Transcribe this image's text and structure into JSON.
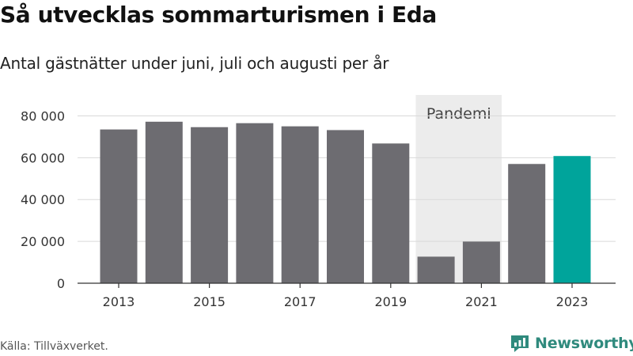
{
  "header": {
    "title": "Så utvecklas sommarturismen i Eda",
    "subtitle": "Antal gästnätter under juni, juli och augusti per år"
  },
  "footer": {
    "source": "Källa: Tillväxverket.",
    "brand": "Newsworthy",
    "brand_icon": "newsworthy-logo-icon"
  },
  "colors": {
    "bar": "#6d6c71",
    "highlight": "#00a49b",
    "band": "#ececec",
    "grid": "#d9d9d9",
    "axis": "#333333",
    "brand": "#2f8a7d"
  },
  "chart_data": {
    "type": "bar",
    "categories": [
      "2013",
      "2014",
      "2015",
      "2016",
      "2017",
      "2018",
      "2019",
      "2020",
      "2021",
      "2022",
      "2023"
    ],
    "values": [
      73500,
      77200,
      74600,
      76500,
      75000,
      73200,
      66800,
      12700,
      19900,
      57000,
      60800
    ],
    "highlight_index": 10,
    "x_tick_labels": [
      "2013",
      "2015",
      "2017",
      "2019",
      "2021",
      "2023"
    ],
    "y_ticks": [
      0,
      20000,
      40000,
      60000,
      80000
    ],
    "y_tick_labels": [
      "0",
      "20 000",
      "40 000",
      "60 000",
      "80 000"
    ],
    "ylim": [
      0,
      90000
    ],
    "grid": true,
    "annotation": {
      "label": "Pandemi",
      "from": "2020",
      "to": "2021"
    },
    "xlabel": "",
    "ylabel": ""
  }
}
